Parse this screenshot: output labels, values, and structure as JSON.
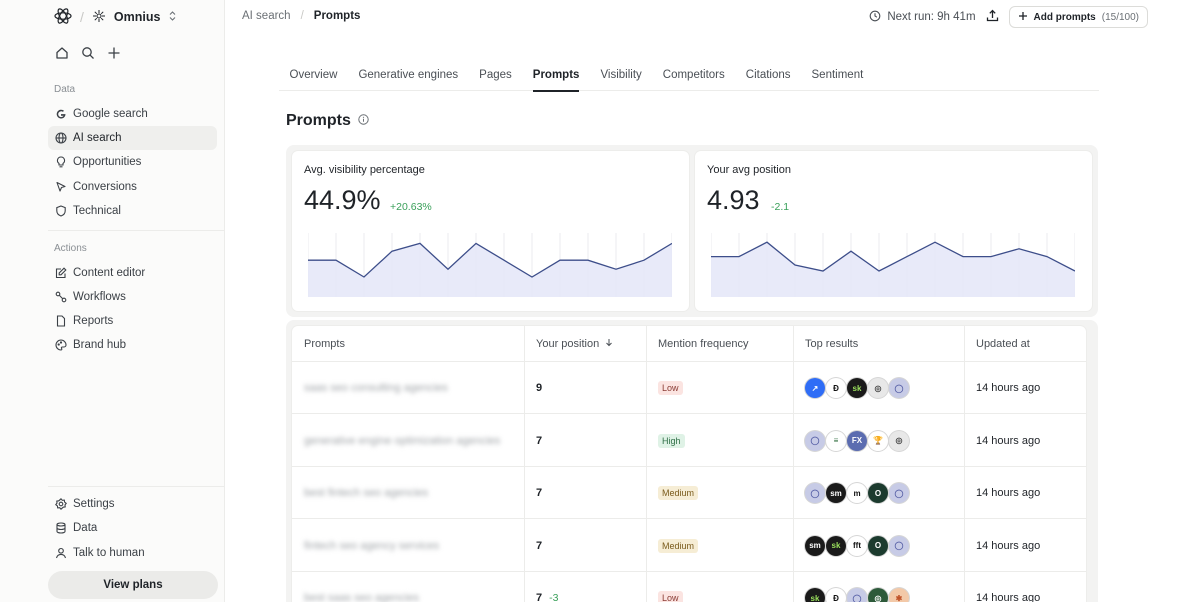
{
  "workspace": {
    "name": "Omnius"
  },
  "sidebar": {
    "data_label": "Data",
    "data_items": [
      {
        "label": "Google search",
        "icon": "google-icon"
      },
      {
        "label": "AI search",
        "icon": "globe-icon",
        "active": true
      },
      {
        "label": "Opportunities",
        "icon": "lightbulb-icon"
      },
      {
        "label": "Conversions",
        "icon": "cursor-icon"
      },
      {
        "label": "Technical",
        "icon": "shield-icon"
      }
    ],
    "actions_label": "Actions",
    "action_items": [
      {
        "label": "Content editor",
        "icon": "edit-icon"
      },
      {
        "label": "Workflows",
        "icon": "workflow-icon"
      },
      {
        "label": "Reports",
        "icon": "document-icon"
      },
      {
        "label": "Brand hub",
        "icon": "palette-icon"
      }
    ],
    "bottom_items": [
      {
        "label": "Settings",
        "icon": "gear-icon"
      },
      {
        "label": "Data",
        "icon": "database-icon"
      },
      {
        "label": "Talk to human",
        "icon": "user-icon"
      }
    ],
    "view_plans": "View plans"
  },
  "breadcrumb": {
    "parent": "AI search",
    "current": "Prompts"
  },
  "topbar": {
    "next_run": "Next run: 9h 41m",
    "add_prompts": "Add prompts",
    "add_prompts_count": "(15/100)"
  },
  "tabs": [
    {
      "label": "Overview"
    },
    {
      "label": "Generative engines"
    },
    {
      "label": "Pages"
    },
    {
      "label": "Prompts",
      "active": true
    },
    {
      "label": "Visibility"
    },
    {
      "label": "Competitors"
    },
    {
      "label": "Citations"
    },
    {
      "label": "Sentiment"
    }
  ],
  "page_title": "Prompts",
  "cards": [
    {
      "title": "Avg. visibility percentage",
      "value": "44.9%",
      "delta": "+20.63%",
      "spark": [
        0.58,
        0.58,
        0.3,
        0.73,
        0.86,
        0.43,
        0.86,
        0.58,
        0.3,
        0.58,
        0.58,
        0.43,
        0.58,
        0.86
      ]
    },
    {
      "title": "Your avg position",
      "value": "4.93",
      "delta": "-2.1",
      "spark": [
        0.64,
        0.64,
        0.88,
        0.5,
        0.4,
        0.73,
        0.4,
        0.64,
        0.88,
        0.64,
        0.64,
        0.77,
        0.64,
        0.4
      ]
    }
  ],
  "table": {
    "columns": [
      "Prompts",
      "Your position",
      "Mention frequency",
      "Top results",
      "Updated at"
    ],
    "rows": [
      {
        "prompt": "saas seo consulting agencies",
        "position": "9",
        "delta": "",
        "frequency": "Low",
        "level": "low",
        "icons": [
          {
            "name": "arrow-logo-icon",
            "text": "↗",
            "bg": "#2f6df6",
            "fg": "#ffffff"
          },
          {
            "name": "d-logo-icon",
            "text": "Ɖ",
            "bg": "#ffffff",
            "fg": "#111111"
          },
          {
            "name": "sk-logo-icon",
            "text": "sk",
            "bg": "#1a1a1a",
            "fg": "#9be15d"
          },
          {
            "name": "ring-logo-icon",
            "text": "◎",
            "bg": "#e8e8e8",
            "fg": "#444444"
          },
          {
            "name": "globe-logo-icon",
            "text": "◯",
            "bg": "#c7cbe6",
            "fg": "#5a63a8"
          }
        ],
        "updated": "14 hours ago"
      },
      {
        "prompt": "generative engine optimization agencies",
        "position": "7",
        "delta": "",
        "frequency": "High",
        "level": "high",
        "icons": [
          {
            "name": "globe-logo-icon",
            "text": "◯",
            "bg": "#c7cbe6",
            "fg": "#5a63a8"
          },
          {
            "name": "stack-logo-icon",
            "text": "≡",
            "bg": "#ffffff",
            "fg": "#2a6a3a"
          },
          {
            "name": "fx-logo-icon",
            "text": "FX",
            "bg": "#5b6cb0",
            "fg": "#ffffff"
          },
          {
            "name": "trophy-logo-icon",
            "text": "🏆",
            "bg": "#ffffff",
            "fg": "#2f4a9a"
          },
          {
            "name": "ring-logo-icon",
            "text": "◎",
            "bg": "#e8e8e8",
            "fg": "#444444"
          }
        ],
        "updated": "14 hours ago"
      },
      {
        "prompt": "best fintech seo agencies",
        "position": "7",
        "delta": "",
        "frequency": "Medium",
        "level": "medium",
        "icons": [
          {
            "name": "globe-logo-icon",
            "text": "◯",
            "bg": "#c7cbe6",
            "fg": "#5a63a8"
          },
          {
            "name": "sm-logo-icon",
            "text": "sm",
            "bg": "#1a1a1a",
            "fg": "#ffffff"
          },
          {
            "name": "m-logo-icon",
            "text": "m",
            "bg": "#ffffff",
            "fg": "#111111"
          },
          {
            "name": "o-logo-icon",
            "text": "O",
            "bg": "#1c3b2e",
            "fg": "#ffffff"
          },
          {
            "name": "globe-logo-icon",
            "text": "◯",
            "bg": "#c7cbe6",
            "fg": "#5a63a8"
          }
        ],
        "updated": "14 hours ago"
      },
      {
        "prompt": "fintech seo agency services",
        "position": "7",
        "delta": "",
        "frequency": "Medium",
        "level": "medium",
        "icons": [
          {
            "name": "sm-logo-icon",
            "text": "sm",
            "bg": "#1a1a1a",
            "fg": "#ffffff"
          },
          {
            "name": "sk-logo-icon",
            "text": "sk",
            "bg": "#1a1a1a",
            "fg": "#9be15d"
          },
          {
            "name": "fft-logo-icon",
            "text": "fft",
            "bg": "#ffffff",
            "fg": "#111111"
          },
          {
            "name": "o-logo-icon",
            "text": "O",
            "bg": "#1c3b2e",
            "fg": "#ffffff"
          },
          {
            "name": "globe-logo-icon",
            "text": "◯",
            "bg": "#c7cbe6",
            "fg": "#5a63a8"
          }
        ],
        "updated": "14 hours ago"
      },
      {
        "prompt": "best saas seo agencies",
        "position": "7",
        "delta": "-3",
        "frequency": "Low",
        "level": "low",
        "icons": [
          {
            "name": "sk-logo-icon",
            "text": "sk",
            "bg": "#1a1a1a",
            "fg": "#9be15d"
          },
          {
            "name": "d-logo-icon",
            "text": "Ɖ",
            "bg": "#ffffff",
            "fg": "#111111"
          },
          {
            "name": "globe-logo-icon",
            "text": "◯",
            "bg": "#c7cbe6",
            "fg": "#5a63a8"
          },
          {
            "name": "o-logo-icon",
            "text": "◎",
            "bg": "#2d5a3a",
            "fg": "#ffffff"
          },
          {
            "name": "orange-logo-icon",
            "text": "✱",
            "bg": "#f3c9a8",
            "fg": "#c0532a"
          }
        ],
        "updated": "14 hours ago"
      }
    ]
  },
  "colors": {
    "accent_line": "#3d4e8a",
    "accent_fill": "#e6e8f8",
    "positive": "#3aa05a"
  }
}
